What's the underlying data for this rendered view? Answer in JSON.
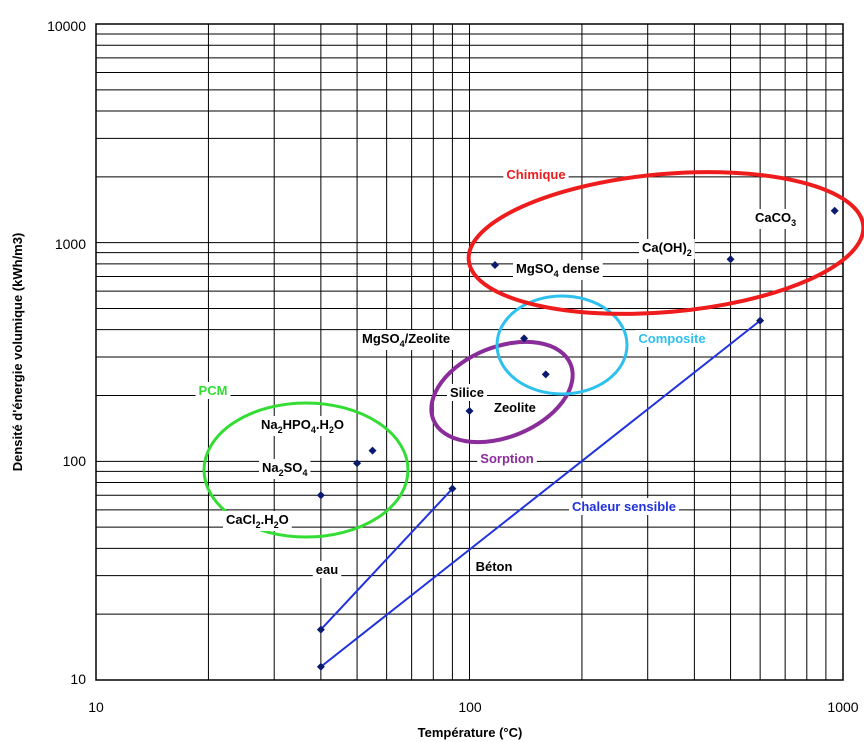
{
  "chart_data": {
    "type": "scatter",
    "x_scale": "log",
    "y_scale": "log",
    "xlim": [
      10,
      1000
    ],
    "ylim": [
      10,
      10000
    ],
    "xlabel": "Température (°C)",
    "ylabel": "Densité d'énergie volumique (kWh/m3)",
    "grid": true,
    "x_ticks": [
      10,
      100,
      1000
    ],
    "y_ticks": [
      10,
      100,
      1000,
      10000
    ],
    "x_tick_labels": [
      "10",
      "100",
      "1000"
    ],
    "y_tick_labels": [
      "10",
      "100",
      "1000",
      "10000"
    ],
    "colors": {
      "points": "#0a1a6e",
      "pcm": "#33dd33",
      "sorption": "#8a2d9a",
      "composite": "#2ec0ee",
      "chimique": "#ee1c1c",
      "sensible": "#2233dd"
    },
    "points": [
      {
        "label": "eau",
        "x": 40,
        "y": 17
      },
      {
        "label": "",
        "x": 40,
        "y": 11.5
      },
      {
        "label": "CaCl2.H2O",
        "x": 40,
        "y": 70
      },
      {
        "label": "Na2SO4",
        "x": 50,
        "y": 98
      },
      {
        "label": "Na2HPO4.H2O",
        "x": 55,
        "y": 112
      },
      {
        "label": "",
        "x": 90,
        "y": 75
      },
      {
        "label": "Silice",
        "x": 100,
        "y": 170
      },
      {
        "label": "MgSO4/Zeolite",
        "x": 140,
        "y": 365
      },
      {
        "label": "Zeolite",
        "x": 160,
        "y": 250
      },
      {
        "label": "MgSO4 dense",
        "x": 117,
        "y": 790
      },
      {
        "label": "Ca(OH)2",
        "x": 500,
        "y": 840
      },
      {
        "label": "CaCO3",
        "x": 950,
        "y": 1400
      },
      {
        "label": "",
        "x": 600,
        "y": 440
      }
    ],
    "lines": [
      {
        "x": [
          40,
          90
        ],
        "y": [
          17,
          75
        ]
      },
      {
        "x": [
          40,
          600
        ],
        "y": [
          11.5,
          440
        ]
      }
    ],
    "groups": [
      "PCM",
      "Sorption",
      "Composite",
      "Chimique",
      "Chaleur sensible"
    ],
    "labels": {
      "eau": "eau",
      "beton": "Béton",
      "cacl2": "CaCl",
      "cacl2_sub": "2",
      "cacl2_tail": ".H",
      "cacl2_sub2": "2",
      "cacl2_end": "O",
      "na2so4": "Na",
      "na2so4_sub": "2",
      "na2so4_mid": "SO",
      "na2so4_sub2": "4",
      "na2hpo4": "Na",
      "na2hpo4_sub": "2",
      "na2hpo4_mid": "HPO",
      "na2hpo4_sub2": "4",
      "na2hpo4_tail": ".H",
      "na2hpo4_sub3": "2",
      "na2hpo4_end": "O",
      "silice": "Silice",
      "zeolite": "Zeolite",
      "mgso4zeo": "MgSO",
      "mgso4zeo_sub": "4",
      "mgso4zeo_tail": "/Zeolite",
      "mgso4dense": "MgSO",
      "mgso4dense_sub": "4",
      "mgso4dense_tail": " dense",
      "caoh2": "Ca(OH)",
      "caoh2_sub": "2",
      "caco3": "CaCO",
      "caco3_sub": "3"
    }
  }
}
